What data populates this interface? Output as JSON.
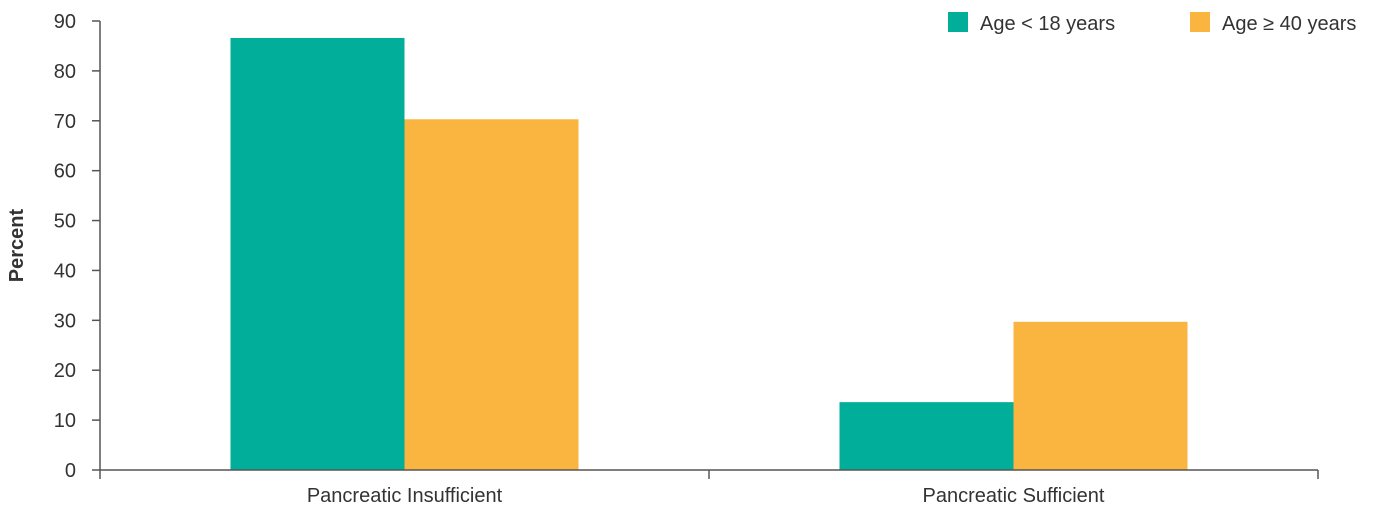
{
  "chart_data": {
    "type": "bar",
    "categories": [
      "Pancreatic Insufficient",
      "Pancreatic Sufficient"
    ],
    "series": [
      {
        "name": "Age < 18 years",
        "values": [
          86.6,
          13.6
        ],
        "color": "#00AE9A"
      },
      {
        "name": "Age ≥ 40 years",
        "values": [
          70.3,
          29.7
        ],
        "color": "#F9B53F"
      }
    ],
    "title": "",
    "xlabel": "",
    "ylabel": "Percent",
    "ylim": [
      0,
      90
    ],
    "yticks": [
      0,
      10,
      20,
      30,
      40,
      50,
      60,
      70,
      80,
      90
    ],
    "grid": false,
    "legend_position": "top-right"
  }
}
